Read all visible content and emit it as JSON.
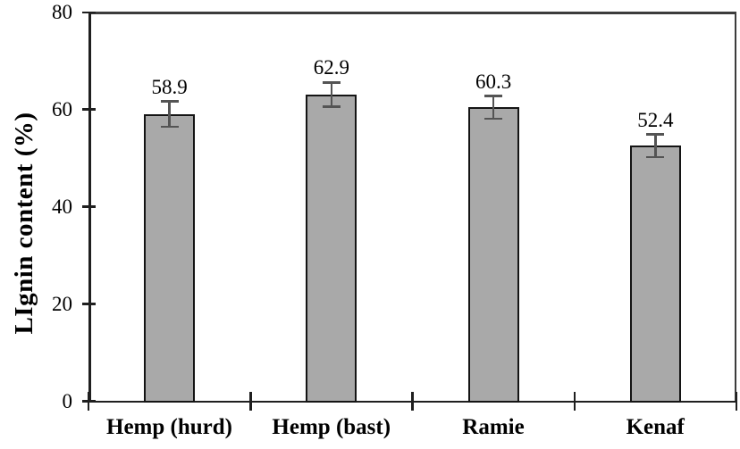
{
  "chart_data": {
    "type": "bar",
    "title": "",
    "xlabel": "",
    "ylabel": "LIgnin content (%)",
    "categories": [
      "Hemp (hurd)",
      "Hemp (bast)",
      "Ramie",
      "Kenaf"
    ],
    "values": [
      58.9,
      62.9,
      60.3,
      52.4
    ],
    "error_bars": [
      2.6,
      2.5,
      2.3,
      2.3
    ],
    "data_labels": [
      "58.9",
      "62.9",
      "60.3",
      "52.4"
    ],
    "ylim": [
      0,
      80
    ],
    "yticks": [
      0,
      20,
      40,
      60,
      80
    ],
    "grid": false,
    "legend": "none",
    "plot_frame": true,
    "colors": {
      "bar_fill": "#a9a9a9",
      "bar_border": "#141414",
      "error_bar": "#545454",
      "axis": "#1f1f1f",
      "frame": "#3c3c3c",
      "text": "#000000",
      "background": "#ffffff"
    }
  }
}
